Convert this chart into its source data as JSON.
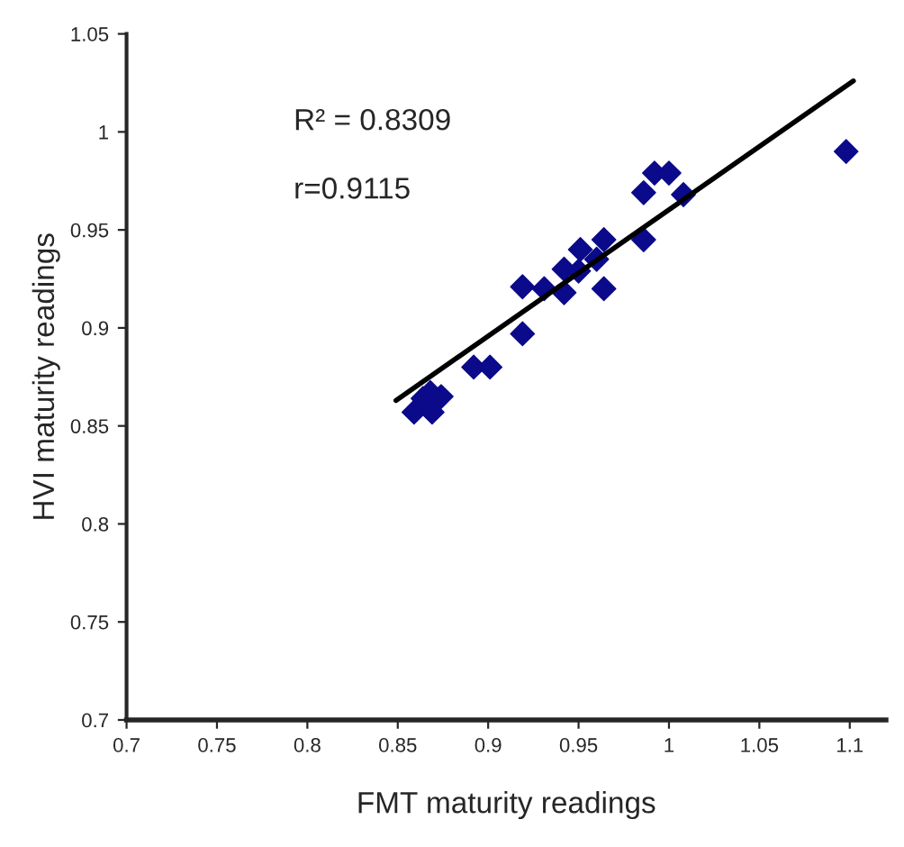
{
  "chart_data": {
    "type": "scatter",
    "xlabel": "FMT maturity readings",
    "ylabel": "HVI maturity readings",
    "annotations": [
      "R² = 0.8309",
      "r=0.9115"
    ],
    "xlim": [
      0.7,
      1.12
    ],
    "xticks": [
      0.7,
      0.75,
      0.8,
      0.85,
      0.9,
      0.95,
      1,
      1.05,
      1.1
    ],
    "ylim": [
      0.7,
      1.05
    ],
    "yticks": [
      0.7,
      0.75,
      0.8,
      0.85,
      0.9,
      0.95,
      1,
      1.05
    ],
    "grid": false,
    "legend": false,
    "series": [
      {
        "color": "#0a0a8a",
        "marker": "diamond",
        "x": [
          1.098,
          0.992,
          1.0,
          1.008,
          0.986,
          0.986,
          0.964,
          0.964,
          0.951,
          0.96,
          0.942,
          0.942,
          0.931,
          0.919,
          0.919,
          0.95,
          0.892,
          0.901,
          0.859,
          0.864,
          0.869,
          0.874,
          0.868
        ],
        "values": [
          0.99,
          0.979,
          0.979,
          0.968,
          0.969,
          0.945,
          0.945,
          0.92,
          0.94,
          0.935,
          0.93,
          0.918,
          0.92,
          0.921,
          0.897,
          0.929,
          0.88,
          0.88,
          0.857,
          0.864,
          0.857,
          0.865,
          0.867
        ]
      },
      {
        "type": "line",
        "color": "#000000",
        "marker": "none",
        "line_style": "solid",
        "x": [
          0.849,
          1.102
        ],
        "values": [
          0.863,
          1.026
        ]
      }
    ]
  }
}
